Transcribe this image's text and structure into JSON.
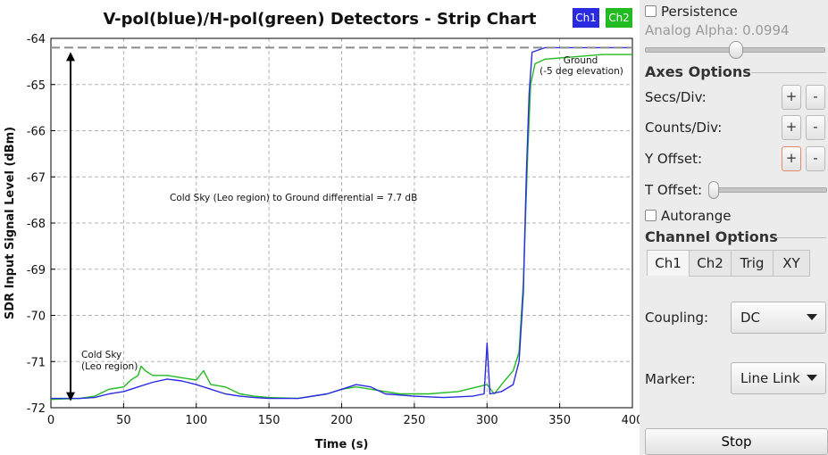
{
  "chart_data": {
    "type": "line",
    "title": "V-pol(blue)/H-pol(green) Detectors  -  Strip Chart",
    "xlabel": "Time (s)",
    "ylabel": "SDR Input Signal Level (dBm)",
    "xlim": [
      0,
      400
    ],
    "ylim": [
      -72,
      -64
    ],
    "xticks": [
      0,
      50,
      100,
      150,
      200,
      250,
      300,
      350,
      400
    ],
    "yticks": [
      -64,
      -65,
      -66,
      -67,
      -68,
      -69,
      -70,
      -71,
      -72
    ],
    "grid": true,
    "legend_position": "top-right",
    "series": [
      {
        "name": "Ch1",
        "color": "#2a2ae0",
        "x": [
          0,
          20,
          30,
          40,
          50,
          60,
          70,
          80,
          90,
          100,
          110,
          120,
          130,
          140,
          150,
          170,
          190,
          200,
          210,
          220,
          230,
          250,
          270,
          290,
          298,
          300,
          302,
          310,
          318,
          322,
          325,
          327,
          329,
          331,
          340,
          360,
          380,
          400
        ],
        "y": [
          -71.8,
          -71.8,
          -71.78,
          -71.7,
          -71.65,
          -71.55,
          -71.45,
          -71.38,
          -71.42,
          -71.5,
          -71.6,
          -71.7,
          -71.75,
          -71.78,
          -71.8,
          -71.8,
          -71.7,
          -71.6,
          -71.5,
          -71.55,
          -71.7,
          -71.75,
          -71.78,
          -71.75,
          -71.7,
          -70.6,
          -71.7,
          -71.65,
          -71.5,
          -71.0,
          -69.5,
          -67.0,
          -65.2,
          -64.3,
          -64.2,
          -64.2,
          -64.2,
          -64.2
        ]
      },
      {
        "name": "Ch2",
        "color": "#22bb22",
        "x": [
          0,
          20,
          30,
          40,
          50,
          55,
          60,
          62,
          65,
          70,
          80,
          90,
          100,
          105,
          110,
          120,
          130,
          140,
          150,
          170,
          190,
          200,
          210,
          220,
          240,
          260,
          280,
          300,
          305,
          310,
          318,
          322,
          325,
          328,
          330,
          333,
          340,
          360,
          380,
          400
        ],
        "y": [
          -71.82,
          -71.8,
          -71.75,
          -71.6,
          -71.55,
          -71.4,
          -71.3,
          -71.1,
          -71.2,
          -71.3,
          -71.3,
          -71.35,
          -71.4,
          -71.2,
          -71.5,
          -71.55,
          -71.7,
          -71.75,
          -71.78,
          -71.8,
          -71.7,
          -71.6,
          -71.55,
          -71.6,
          -71.7,
          -71.7,
          -71.65,
          -71.5,
          -71.7,
          -71.5,
          -71.2,
          -70.8,
          -69.3,
          -66.5,
          -65.0,
          -64.55,
          -64.45,
          -64.4,
          -64.35,
          -64.35
        ]
      }
    ],
    "reference_line": {
      "y": -64.2
    },
    "annotations": {
      "differential": "Cold Sky (Leo region) to Ground differential = 7.7 dB",
      "cold_sky_line1": "Cold Sky",
      "cold_sky_line2": "(Leo region)",
      "ground_line1": "Ground",
      "ground_line2": "(-5 deg elevation)"
    }
  },
  "legend": {
    "ch1": "Ch1",
    "ch2": "Ch2",
    "ch1_color": "#2a2ae0",
    "ch2_color": "#22bb22"
  },
  "controls": {
    "persistence_label": "Persistence",
    "analog_alpha_label": "Analog Alpha: 0.0994",
    "analog_alpha_value": 0.0994,
    "axes_options_title": "Axes Options",
    "secs_div_label": "Secs/Div:",
    "counts_div_label": "Counts/Div:",
    "y_offset_label": "Y Offset:",
    "t_offset_label": "T Offset:",
    "plus": "+",
    "minus": "-",
    "autorange_label": "Autorange",
    "channel_options_title": "Channel Options",
    "tabs": [
      "Ch1",
      "Ch2",
      "Trig",
      "XY"
    ],
    "coupling_label": "Coupling:",
    "coupling_value": "DC",
    "marker_label": "Marker:",
    "marker_value": "Line Link",
    "stop_label": "Stop"
  }
}
